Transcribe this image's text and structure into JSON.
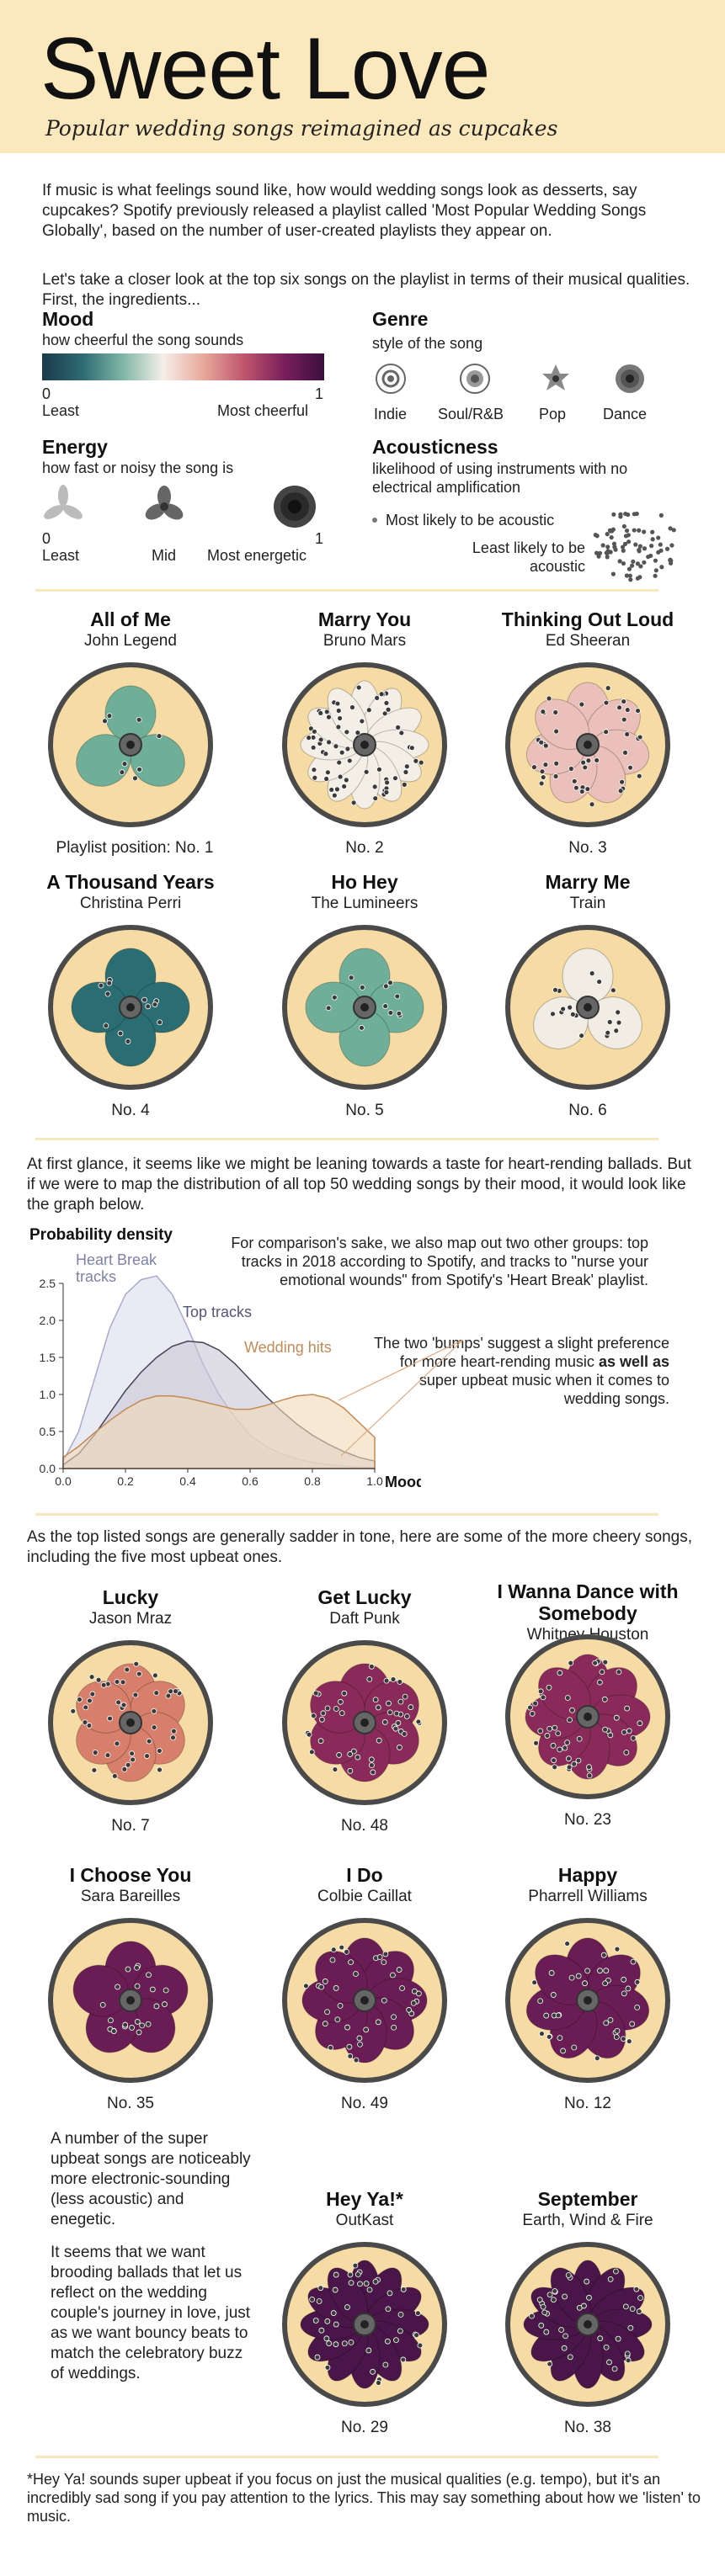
{
  "header": {
    "title": "Sweet Love",
    "subtitle": "Popular wedding songs reimagined as cupcakes"
  },
  "intro": [
    "If music is what feelings sound like, how would wedding songs look as desserts, say cupcakes? Spotify previously released a playlist called 'Most Popular Wedding Songs Globally', based on the number of user-created playlists they appear on.",
    "Let's take a closer look at the top six songs on the playlist in terms of their musical qualities. First, the ingredients..."
  ],
  "legend": {
    "mood": {
      "title": "Mood",
      "desc": "how cheerful the song sounds",
      "min_label": "0",
      "min_text": "Least",
      "max_label": "1",
      "max_text": "Most cheerful",
      "gradient": [
        "#1b3a4b",
        "#2d6a72",
        "#7fb6a6",
        "#f5efe8",
        "#e8a89a",
        "#c0566e",
        "#7a1f5c",
        "#3a0f3f"
      ]
    },
    "energy": {
      "title": "Energy",
      "desc": "how fast or noisy the song is",
      "min_label": "0",
      "min_text": "Least",
      "mid_text": "Mid",
      "max_label": "1",
      "max_text": "Most energetic"
    },
    "genre": {
      "title": "Genre",
      "desc": "style of the song",
      "items": [
        "Indie",
        "Soul/R&B",
        "Pop",
        "Dance"
      ]
    },
    "acousticness": {
      "title": "Acousticness",
      "desc": "likelihood of using instruments with no electrical amplification",
      "most_text": "Most likely to be acoustic",
      "least_text": "Least likely to be acoustic"
    }
  },
  "songs": [
    {
      "title": "All of Me",
      "artist": "John Legend",
      "rank": "Playlist position: No. 1",
      "color": "#6fae98",
      "petals": 3,
      "dots": 8
    },
    {
      "title": "Marry You",
      "artist": "Bruno Mars",
      "rank": "No. 2",
      "color": "#f3efe6",
      "petals": 12,
      "dots": 70
    },
    {
      "title": "Thinking Out Loud",
      "artist": "Ed Sheeran",
      "rank": "No. 3",
      "color": "#ebc0ba",
      "petals": 7,
      "dots": 45
    },
    {
      "title": "A Thousand Years",
      "artist": "Christina Perri",
      "rank": "No. 4",
      "color": "#2a6e73",
      "petals": 4,
      "dots": 12
    },
    {
      "title": "Ho Hey",
      "artist": "The Lumineers",
      "rank": "No. 5",
      "color": "#6fae98",
      "petals": 4,
      "dots": 12
    },
    {
      "title": "Marry Me",
      "artist": "Train",
      "rank": "No. 6",
      "color": "#f1ede4",
      "petals": 3,
      "dots": 18
    },
    {
      "title": "Lucky",
      "artist": "Jason Mraz",
      "rank": "No. 7",
      "color": "#d77f6b",
      "petals": 6,
      "dots": 45
    },
    {
      "title": "Get Lucky",
      "artist": "Daft Punk",
      "rank": "No. 48",
      "color": "#8a2a5a",
      "petals": 6,
      "dots": 48
    },
    {
      "title": "I Wanna Dance with Somebody",
      "artist": "Whitney Houston",
      "rank": "No. 23",
      "color": "#8a2a5a",
      "petals": 8,
      "dots": 50
    },
    {
      "title": "I Choose You",
      "artist": "Sara Bareilles",
      "rank": "No. 35",
      "color": "#6a1c55",
      "petals": 5,
      "dots": 22
    },
    {
      "title": "I Do",
      "artist": "Colbie Caillat",
      "rank": "No. 49",
      "color": "#6a1c55",
      "petals": 8,
      "dots": 40
    },
    {
      "title": "Happy",
      "artist": "Pharrell Williams",
      "rank": "No. 12",
      "color": "#6a1c55",
      "petals": 7,
      "dots": 40
    },
    {
      "title": "Hey Ya!*",
      "artist": "OutKast",
      "rank": "No. 29",
      "color": "#4a1548",
      "petals": 12,
      "dots": 45
    },
    {
      "title": "September",
      "artist": "Earth, Wind & Fire",
      "rank": "No. 38",
      "color": "#4a1548",
      "petals": 12,
      "dots": 40
    }
  ],
  "mid_text": "At first glance, it seems like we might be leaning towards a taste for heart-rending ballads. But if we were to map the distribution of all top 50 wedding songs by their mood, it would look like the graph below.",
  "chart_data": {
    "type": "area",
    "title": "Probability density",
    "xlabel": "Mood",
    "ylabel": "Probability density",
    "xlim": [
      0,
      1.0
    ],
    "ylim": [
      0,
      2.5
    ],
    "xticks": [
      "0.0",
      "0.2",
      "0.4",
      "0.6",
      "0.8",
      "1.0"
    ],
    "yticks": [
      "0.0",
      "0.5",
      "1.0",
      "1.5",
      "2.0",
      "2.5"
    ],
    "x": [
      0,
      0.05,
      0.1,
      0.15,
      0.2,
      0.25,
      0.3,
      0.35,
      0.4,
      0.45,
      0.5,
      0.55,
      0.6,
      0.65,
      0.7,
      0.75,
      0.8,
      0.85,
      0.9,
      0.95,
      1.0
    ],
    "series": [
      {
        "name": "Heart Break tracks",
        "values": [
          0.1,
          0.5,
          1.2,
          1.9,
          2.35,
          2.55,
          2.6,
          2.35,
          1.9,
          1.4,
          1.0,
          0.7,
          0.45,
          0.3,
          0.2,
          0.13,
          0.08,
          0.05,
          0.03,
          0.02,
          0.01
        ],
        "color": "#dcdcec"
      },
      {
        "name": "Top tracks",
        "values": [
          0.05,
          0.2,
          0.45,
          0.75,
          1.05,
          1.3,
          1.5,
          1.65,
          1.72,
          1.7,
          1.6,
          1.42,
          1.2,
          0.98,
          0.78,
          0.6,
          0.45,
          0.33,
          0.23,
          0.15,
          0.1
        ],
        "color": "#c9c6d4"
      },
      {
        "name": "Wedding hits",
        "values": [
          0.15,
          0.3,
          0.48,
          0.65,
          0.8,
          0.92,
          0.98,
          0.98,
          0.95,
          0.9,
          0.85,
          0.8,
          0.8,
          0.85,
          0.92,
          0.98,
          1.0,
          0.95,
          0.82,
          0.62,
          0.42
        ],
        "color": "#f2d9b5"
      }
    ],
    "annotations": [
      "For comparison's sake, we also map out two other groups: top tracks in 2018 according to Spotify, and tracks to \"nurse your emotional wounds\" from Spotify's 'Heart Break' playlist.",
      "The two 'bumps' suggest a slight preference for more heart-rending music",
      "as well as",
      "super upbeat music when it comes to wedding songs."
    ]
  },
  "upbeat_text": "As the top listed songs are generally sadder in tone, here are some of the more cheery songs, including the five most upbeat ones.",
  "side_text": [
    "A number of the super upbeat songs are noticeably more electronic-sounding (less acoustic) and enegetic.",
    "It seems that we want brooding ballads that let us reflect on the wedding couple's journey in love, just as we want bouncy beats to match the celebratory buzz of weddings."
  ],
  "footnote": "*Hey Ya! sounds super upbeat if you focus on just the musical qualities (e.g. tempo), but it's an incredibly sad song if you pay attention to the lyrics. This may say something about how we 'listen' to music."
}
